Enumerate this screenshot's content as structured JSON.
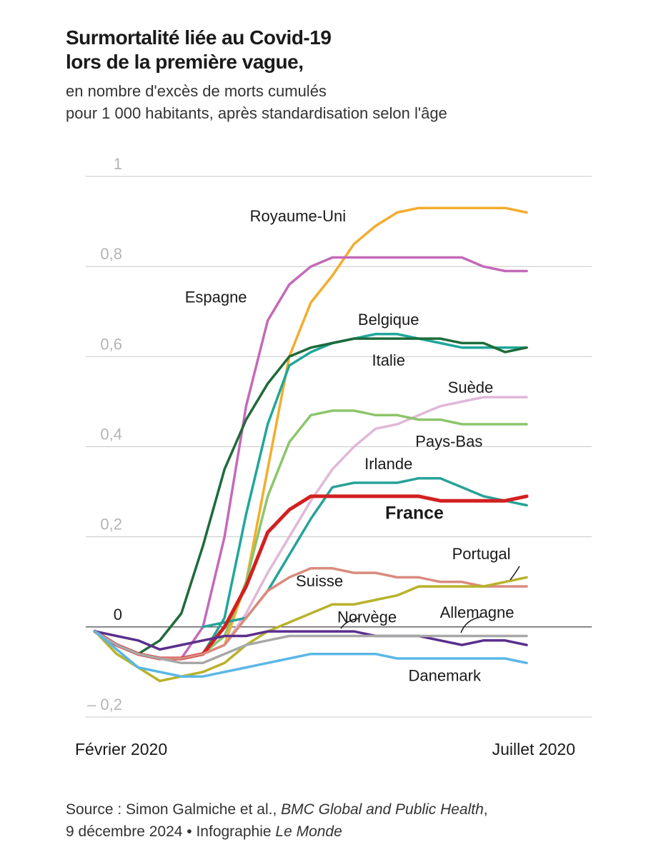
{
  "header": {
    "title_line1": "Surmortalité liée au Covid-19",
    "title_line2": "lors de la première vague,",
    "subtitle_line1": "en nombre d'excès de morts cumulés",
    "subtitle_line2": "pour 1 000 habitants, après standardisation selon l'âge"
  },
  "footer": {
    "source_prefix": "Source : Simon Galmiche et al., ",
    "source_journal": "BMC Global and Public Health",
    "source_sep": ",",
    "source_line2_prefix": "9 décembre 2024 • Infographie ",
    "source_publisher": "Le Monde"
  },
  "chart_data": {
    "type": "line",
    "y_ticks": [
      {
        "value": 1,
        "label": "1"
      },
      {
        "value": 0.8,
        "label": "0,8"
      },
      {
        "value": 0.6,
        "label": "0,6"
      },
      {
        "value": 0.4,
        "label": "0,4"
      },
      {
        "value": 0.2,
        "label": "0,2"
      },
      {
        "value": 0,
        "label": "0"
      },
      {
        "value": -0.2,
        "label": "– 0,2"
      }
    ],
    "ylim": [
      -0.2,
      1
    ],
    "xlim": [
      0,
      20
    ],
    "x_labels": [
      {
        "x": 0,
        "label": "Février 2020"
      },
      {
        "x": 20,
        "label": "Juillet 2020"
      }
    ],
    "grid": true,
    "colors": {
      "grid": "#c8c8c8",
      "zero_line": "#555555"
    },
    "series": [
      {
        "name": "Royaume-Uni",
        "color": "#f2ad2e",
        "width": 3.5,
        "x": [
          0,
          1,
          2,
          3,
          4,
          5,
          6,
          7,
          8,
          9,
          10,
          11,
          12,
          13,
          14,
          15,
          16,
          17,
          18,
          19,
          20
        ],
        "y": [
          -0.01,
          -0.04,
          -0.06,
          -0.07,
          -0.07,
          -0.06,
          -0.04,
          0.1,
          0.35,
          0.6,
          0.72,
          0.78,
          0.85,
          0.89,
          0.92,
          0.93,
          0.93,
          0.93,
          0.93,
          0.93,
          0.92
        ]
      },
      {
        "name": "Espagne",
        "color": "#c46ab8",
        "width": 3.5,
        "x": [
          0,
          1,
          2,
          3,
          4,
          5,
          6,
          7,
          8,
          9,
          10,
          11,
          12,
          13,
          14,
          15,
          16,
          17,
          18,
          19,
          20
        ],
        "y": [
          -0.01,
          -0.04,
          -0.06,
          -0.07,
          -0.07,
          0.0,
          0.2,
          0.49,
          0.68,
          0.76,
          0.8,
          0.82,
          0.82,
          0.82,
          0.82,
          0.82,
          0.82,
          0.82,
          0.8,
          0.79,
          0.79
        ]
      },
      {
        "name": "Belgique",
        "color": "#1fa79b",
        "width": 3.5,
        "x": [
          0,
          1,
          2,
          3,
          4,
          5,
          6,
          7,
          8,
          9,
          10,
          11,
          12,
          13,
          14,
          15,
          16,
          17,
          18,
          19,
          20
        ],
        "y": [
          -0.01,
          -0.04,
          -0.06,
          -0.07,
          -0.07,
          -0.06,
          0.02,
          0.25,
          0.45,
          0.58,
          0.61,
          0.63,
          0.64,
          0.65,
          0.65,
          0.64,
          0.63,
          0.62,
          0.62,
          0.62,
          0.62
        ]
      },
      {
        "name": "Italie",
        "color": "#1e6b3b",
        "width": 3.5,
        "x": [
          0,
          1,
          2,
          3,
          4,
          5,
          6,
          7,
          8,
          9,
          10,
          11,
          12,
          13,
          14,
          15,
          16,
          17,
          18,
          19,
          20
        ],
        "y": [
          -0.01,
          -0.04,
          -0.06,
          -0.03,
          0.03,
          0.18,
          0.35,
          0.46,
          0.54,
          0.6,
          0.62,
          0.63,
          0.64,
          0.64,
          0.64,
          0.64,
          0.64,
          0.63,
          0.63,
          0.61,
          0.62
        ]
      },
      {
        "name": "Suède",
        "color": "#e0b8d8",
        "width": 3.5,
        "x": [
          0,
          1,
          2,
          3,
          4,
          5,
          6,
          7,
          8,
          9,
          10,
          11,
          12,
          13,
          14,
          15,
          16,
          17,
          18,
          19,
          20
        ],
        "y": [
          -0.01,
          -0.04,
          -0.06,
          -0.07,
          -0.07,
          -0.06,
          -0.04,
          0.03,
          0.12,
          0.2,
          0.28,
          0.35,
          0.4,
          0.44,
          0.45,
          0.47,
          0.49,
          0.5,
          0.51,
          0.51,
          0.51
        ]
      },
      {
        "name": "Pays-Bas",
        "color": "#8cc56a",
        "width": 3.5,
        "x": [
          0,
          1,
          2,
          3,
          4,
          5,
          6,
          7,
          8,
          9,
          10,
          11,
          12,
          13,
          14,
          15,
          16,
          17,
          18,
          19,
          20
        ],
        "y": [
          -0.01,
          -0.04,
          -0.06,
          -0.07,
          -0.07,
          -0.06,
          -0.02,
          0.1,
          0.29,
          0.41,
          0.47,
          0.48,
          0.48,
          0.47,
          0.47,
          0.46,
          0.46,
          0.45,
          0.45,
          0.45,
          0.45
        ]
      },
      {
        "name": "Irlande",
        "color": "#27a29a",
        "width": 3.5,
        "x": [
          5,
          6,
          7,
          8,
          9,
          10,
          11,
          12,
          13,
          14,
          15,
          16,
          17,
          18,
          19,
          20
        ],
        "y": [
          0.0,
          0.01,
          0.02,
          0.08,
          0.16,
          0.24,
          0.31,
          0.32,
          0.32,
          0.32,
          0.33,
          0.33,
          0.31,
          0.29,
          0.28,
          0.27
        ]
      },
      {
        "name": "France",
        "color": "#d22020",
        "width": 5,
        "x": [
          0,
          1,
          2,
          3,
          4,
          5,
          6,
          7,
          8,
          9,
          10,
          11,
          12,
          13,
          14,
          15,
          16,
          17,
          18,
          19,
          20
        ],
        "y": [
          -0.01,
          -0.04,
          -0.06,
          -0.07,
          -0.07,
          -0.06,
          0.0,
          0.09,
          0.21,
          0.26,
          0.29,
          0.29,
          0.29,
          0.29,
          0.29,
          0.29,
          0.28,
          0.28,
          0.28,
          0.28,
          0.29
        ]
      },
      {
        "name": "Suisse",
        "color": "#d98b7d",
        "width": 3.5,
        "x": [
          0,
          1,
          2,
          3,
          4,
          5,
          6,
          7,
          8,
          9,
          10,
          11,
          12,
          13,
          14,
          15,
          16,
          17,
          18,
          19,
          20
        ],
        "y": [
          -0.01,
          -0.04,
          -0.06,
          -0.07,
          -0.07,
          -0.06,
          -0.04,
          0.02,
          0.08,
          0.11,
          0.13,
          0.13,
          0.12,
          0.12,
          0.11,
          0.11,
          0.1,
          0.1,
          0.09,
          0.09,
          0.09
        ]
      },
      {
        "name": "Portugal",
        "color": "#b8b22a",
        "width": 3.5,
        "x": [
          0,
          1,
          2,
          3,
          4,
          5,
          6,
          7,
          8,
          9,
          10,
          11,
          12,
          13,
          14,
          15,
          16,
          17,
          18,
          19,
          20
        ],
        "y": [
          -0.01,
          -0.06,
          -0.09,
          -0.12,
          -0.11,
          -0.1,
          -0.08,
          -0.04,
          -0.01,
          0.01,
          0.03,
          0.05,
          0.05,
          0.06,
          0.07,
          0.09,
          0.09,
          0.09,
          0.09,
          0.1,
          0.11
        ]
      },
      {
        "name": "Norvège",
        "color": "#5b2f8c",
        "width": 3.5,
        "x": [
          0,
          1,
          2,
          3,
          4,
          5,
          6,
          7,
          8,
          9,
          10,
          11,
          12,
          13,
          14,
          15,
          16,
          17,
          18,
          19,
          20
        ],
        "y": [
          -0.01,
          -0.02,
          -0.03,
          -0.05,
          -0.04,
          -0.03,
          -0.02,
          -0.02,
          -0.01,
          -0.01,
          -0.01,
          -0.01,
          -0.01,
          -0.02,
          -0.02,
          -0.02,
          -0.03,
          -0.04,
          -0.03,
          -0.03,
          -0.04
        ]
      },
      {
        "name": "Allemagne",
        "color": "#a8a8a8",
        "width": 3.5,
        "x": [
          0,
          1,
          2,
          3,
          4,
          5,
          6,
          7,
          8,
          9,
          10,
          11,
          12,
          13,
          14,
          15,
          16,
          17,
          18,
          19,
          20
        ],
        "y": [
          -0.01,
          -0.04,
          -0.06,
          -0.07,
          -0.08,
          -0.08,
          -0.06,
          -0.04,
          -0.03,
          -0.02,
          -0.02,
          -0.02,
          -0.02,
          -0.02,
          -0.02,
          -0.02,
          -0.02,
          -0.02,
          -0.02,
          -0.02,
          -0.02
        ]
      },
      {
        "name": "Danemark",
        "color": "#5ab7e6",
        "width": 3.5,
        "x": [
          0,
          1,
          2,
          3,
          4,
          5,
          6,
          7,
          8,
          9,
          10,
          11,
          12,
          13,
          14,
          15,
          16,
          17,
          18,
          19,
          20
        ],
        "y": [
          -0.01,
          -0.05,
          -0.09,
          -0.1,
          -0.11,
          -0.11,
          -0.1,
          -0.09,
          -0.08,
          -0.07,
          -0.06,
          -0.06,
          -0.06,
          -0.06,
          -0.07,
          -0.07,
          -0.07,
          -0.07,
          -0.07,
          -0.07,
          -0.08
        ]
      }
    ],
    "labels": [
      {
        "text": "Royaume-Uni",
        "x": 9.4,
        "y": 0.9
      },
      {
        "text": "Espagne",
        "x": 5.6,
        "y": 0.72
      },
      {
        "text": "Belgique",
        "x": 13.6,
        "y": 0.67
      },
      {
        "text": "Italie",
        "x": 13.6,
        "y": 0.58
      },
      {
        "text": "Suède",
        "x": 17.4,
        "y": 0.52
      },
      {
        "text": "Pays-Bas",
        "x": 16.4,
        "y": 0.4
      },
      {
        "text": "Irlande",
        "x": 13.6,
        "y": 0.35
      },
      {
        "text": "France",
        "x": 14.8,
        "y": 0.24,
        "bold": true
      },
      {
        "text": "Portugal",
        "x": 17.9,
        "y": 0.15
      },
      {
        "text": "Suisse",
        "x": 10.4,
        "y": 0.09
      },
      {
        "text": "Norvège",
        "x": 12.6,
        "y": 0.01
      },
      {
        "text": "Allemagne",
        "x": 17.7,
        "y": 0.02
      },
      {
        "text": "Danemark",
        "x": 16.2,
        "y": -0.12
      }
    ]
  }
}
